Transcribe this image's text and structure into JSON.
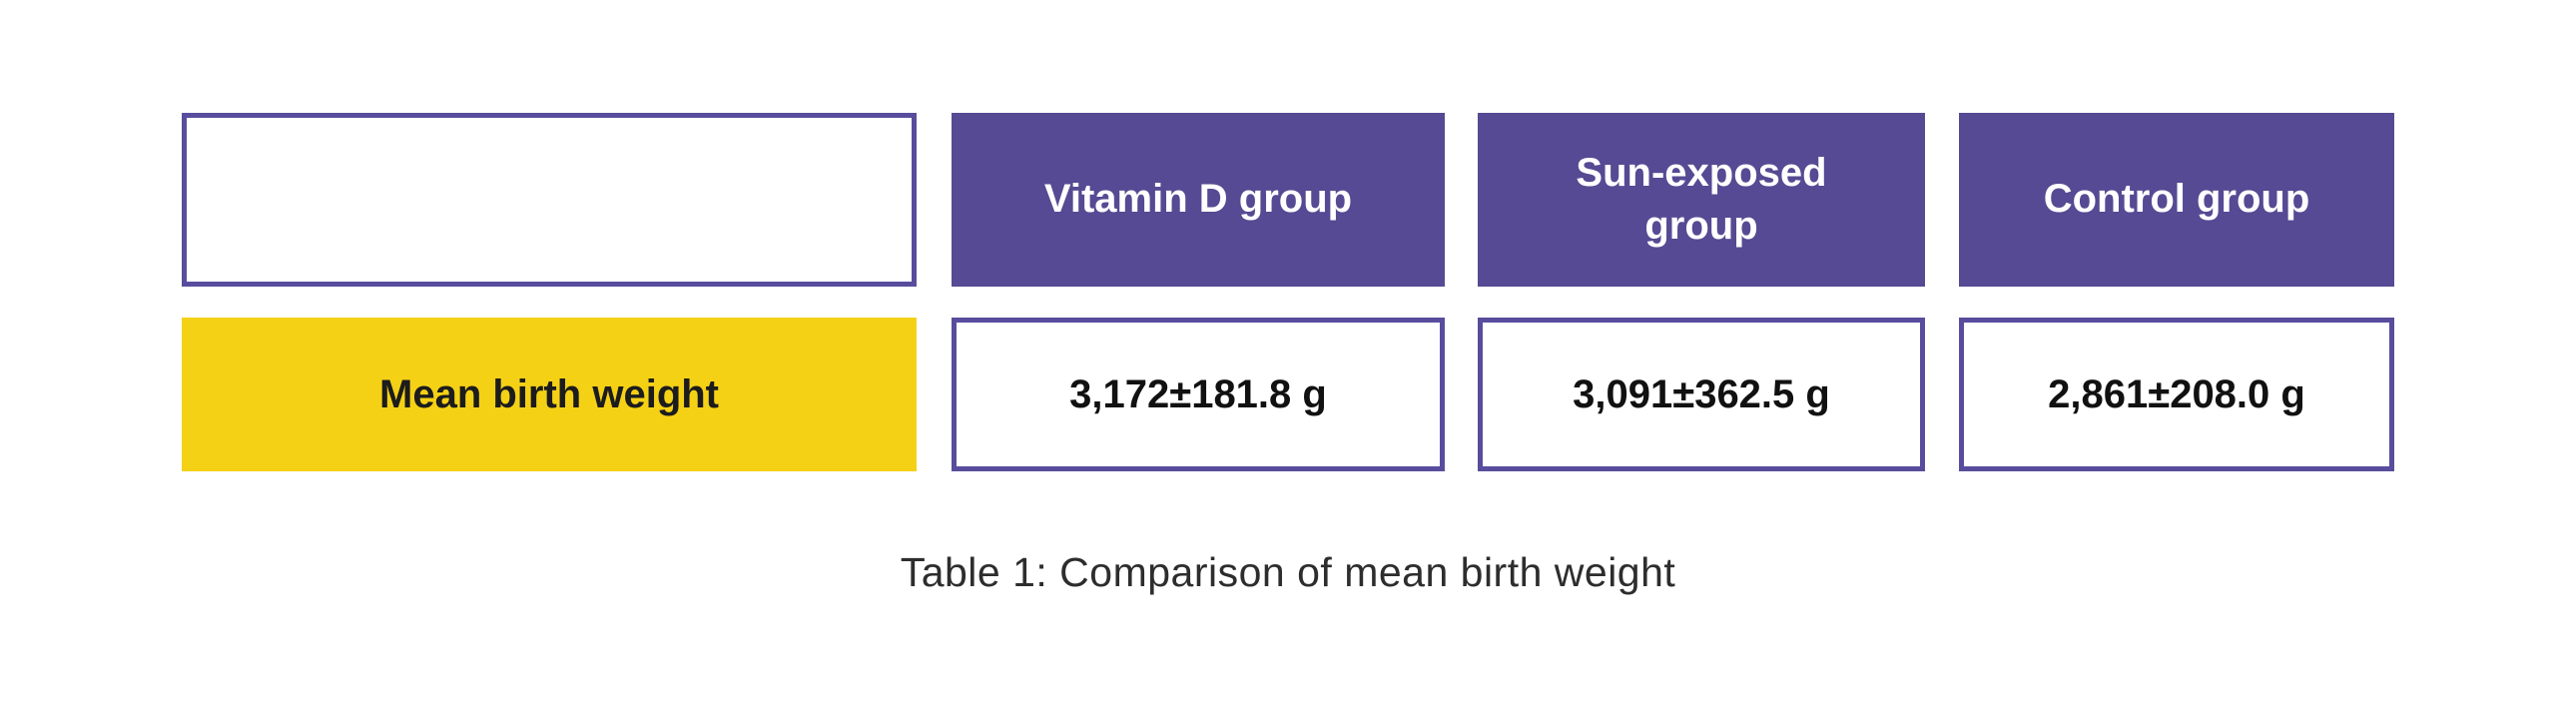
{
  "colors": {
    "header_fill": "#554A93",
    "cell_border": "#584D9D",
    "row_label_fill": "#F5D116",
    "header_text": "#FFFFFF",
    "value_text": "#111111",
    "caption_text": "#2D2D2D",
    "background": "#FFFFFF"
  },
  "chart_data": {
    "type": "table",
    "caption": "Table 1: Comparison of mean birth weight",
    "columns": [
      "Vitamin D group",
      "Sun-exposed group",
      "Control group"
    ],
    "rows": [
      {
        "label": "Mean birth weight",
        "values": [
          "3,172±181.8 g",
          "3,091±362.5 g",
          "2,861±208.0 g"
        ]
      }
    ],
    "means_g": [
      3172,
      3091,
      2861
    ],
    "sd_g": [
      181.8,
      362.5,
      208.0
    ],
    "unit": "g",
    "layout": {
      "legend": "none",
      "grid": "off",
      "style": "infographic-table, separated cells"
    }
  }
}
